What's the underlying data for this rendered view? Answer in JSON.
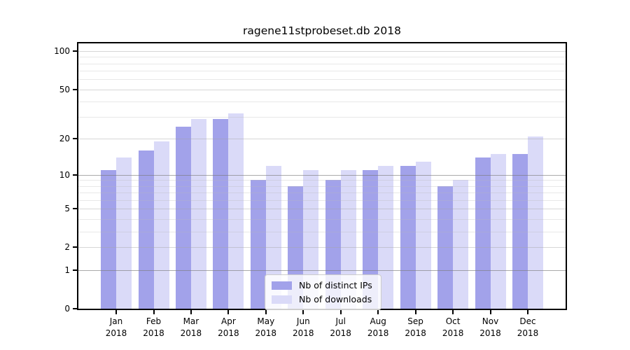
{
  "chart_data": {
    "type": "bar",
    "title": "ragene11stprobeset.db 2018",
    "categories": [
      "Jan",
      "Feb",
      "Mar",
      "Apr",
      "May",
      "Jun",
      "Jul",
      "Aug",
      "Sep",
      "Oct",
      "Nov",
      "Dec"
    ],
    "category_year": "2018",
    "series": [
      {
        "name": "Nb of distinct IPs",
        "color": "#a2a2ea",
        "values": [
          11,
          16,
          25,
          29,
          9,
          8,
          9,
          11,
          12,
          8,
          14,
          15
        ]
      },
      {
        "name": "Nb of downloads",
        "color": "#dadaf8",
        "values": [
          14,
          19,
          29,
          32,
          12,
          11,
          11,
          12,
          13,
          9,
          15,
          21
        ]
      }
    ],
    "xlabel": "",
    "ylabel": "",
    "yscale": "log1p",
    "ylim": [
      0,
      115
    ],
    "ytick_values": [
      0,
      1,
      2,
      5,
      10,
      20,
      50,
      100
    ],
    "ytick_labels": [
      "0",
      "1",
      "2",
      "5",
      "10",
      "20",
      "50",
      "100"
    ],
    "grid": {
      "on": true,
      "strong_values": [
        1,
        10
      ],
      "medium_values": [
        2,
        5,
        20,
        50,
        100
      ],
      "light_values": [
        3,
        4,
        6,
        7,
        8,
        9,
        30,
        40,
        60,
        70,
        80,
        90
      ]
    },
    "legend": {
      "position": "lower center",
      "labels": [
        "Nb of distinct IPs",
        "Nb of downloads"
      ]
    },
    "colors": {
      "axis": "#000000",
      "text": "#000000",
      "background": "#ffffff",
      "legend_border": "#cccccc"
    }
  }
}
